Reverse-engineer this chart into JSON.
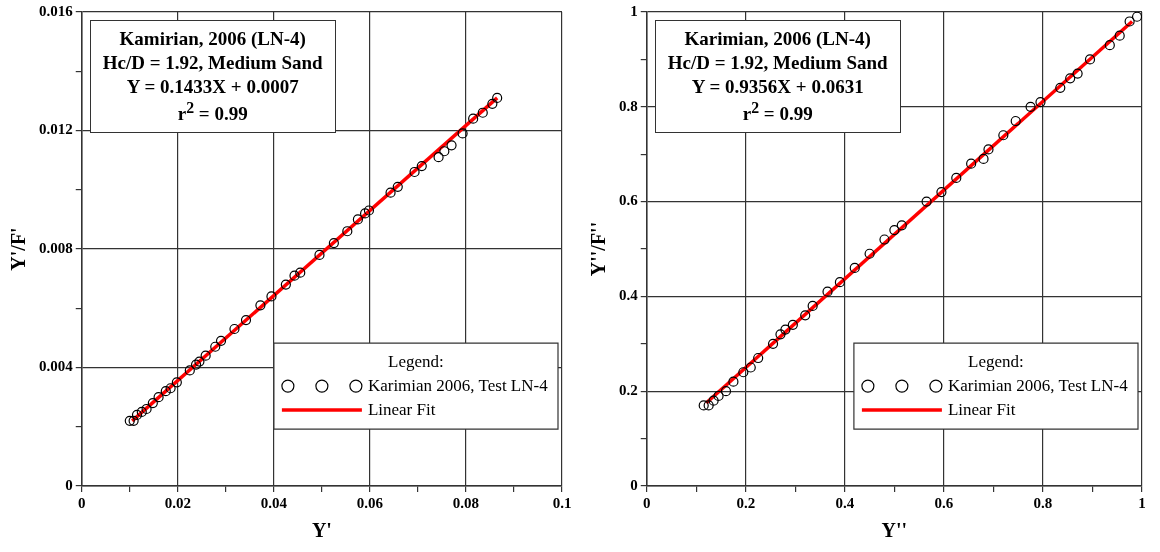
{
  "chart_data": [
    {
      "type": "scatter",
      "xlabel": "Y'",
      "ylabel": "Y'/F'",
      "xlim": [
        0,
        0.1
      ],
      "ylim": [
        0,
        0.016
      ],
      "xticks": [
        0,
        {
          "value": 0.01,
          "label": null
        },
        0.02,
        {
          "value": 0.03,
          "label": null
        },
        0.04,
        {
          "value": 0.05,
          "label": null
        },
        0.06,
        {
          "value": 0.07,
          "label": null
        },
        0.08,
        {
          "value": 0.09,
          "label": null
        },
        0.1
      ],
      "yticks": [
        0,
        {
          "value": 0.002,
          "label": null
        },
        0.004,
        {
          "value": 0.006,
          "label": null
        },
        0.008,
        {
          "value": 0.01,
          "label": null
        },
        0.012,
        {
          "value": 0.014,
          "label": null
        },
        0.016
      ],
      "grid": true,
      "legend": "bottom right",
      "legend_title": "Legend:",
      "annotations": [
        "Kamirian, 2006 (LN-4)",
        "Hc/D = 1.92, Medium Sand",
        "Y = 0.1433X + 0.0007",
        "r$^{2}$ = 0.99"
      ],
      "series": [
        {
          "name": "Karimian 2006, Test LN-4",
          "color": "#000000",
          "marker": "circle",
          "x": [
            0.01,
            0.0108,
            0.0115,
            0.0125,
            0.0135,
            0.0148,
            0.016,
            0.0175,
            0.0185,
            0.0198,
            0.0225,
            0.0238,
            0.0245,
            0.0258,
            0.0278,
            0.029,
            0.0318,
            0.0342,
            0.0372,
            0.0395,
            0.0425,
            0.0443,
            0.0455,
            0.0495,
            0.0525,
            0.0553,
            0.0575,
            0.059,
            0.0598,
            0.0643,
            0.0658,
            0.0693,
            0.0708,
            0.0743,
            0.0755,
            0.077,
            0.0793,
            0.0815,
            0.0835,
            0.0855,
            0.0865
          ],
          "values": [
            0.0022,
            0.0022,
            0.0024,
            0.0025,
            0.0026,
            0.0028,
            0.003,
            0.0032,
            0.0033,
            0.0035,
            0.0039,
            0.0041,
            0.0042,
            0.0044,
            0.0047,
            0.0049,
            0.0053,
            0.0056,
            0.0061,
            0.0064,
            0.0068,
            0.0071,
            0.0072,
            0.0078,
            0.0082,
            0.0086,
            0.009,
            0.0092,
            0.0093,
            0.0099,
            0.0101,
            0.0106,
            0.0108,
            0.0111,
            0.0113,
            0.0115,
            0.0119,
            0.0124,
            0.0126,
            0.0129,
            0.0131
          ]
        },
        {
          "name": "Linear Fit",
          "type": "line",
          "color": "#ff0000",
          "marker": "none",
          "x": [
            0.0105,
            0.0865
          ],
          "values": [
            0.0022,
            0.0131
          ]
        }
      ]
    },
    {
      "type": "scatter",
      "xlabel": "Y''",
      "ylabel": "Y''/F''",
      "xlim": [
        0,
        1
      ],
      "ylim": [
        0,
        1
      ],
      "xticks": [
        0,
        {
          "value": 0.1,
          "label": null
        },
        0.2,
        {
          "value": 0.3,
          "label": null
        },
        0.4,
        {
          "value": 0.5,
          "label": null
        },
        0.6,
        {
          "value": 0.7,
          "label": null
        },
        0.8,
        {
          "value": 0.9,
          "label": null
        },
        1
      ],
      "yticks": [
        0,
        {
          "value": 0.1,
          "label": null
        },
        0.2,
        {
          "value": 0.3,
          "label": null
        },
        0.4,
        {
          "value": 0.5,
          "label": null
        },
        0.6,
        {
          "value": 0.7,
          "label": null
        },
        0.8,
        {
          "value": 0.9,
          "label": null
        },
        1
      ],
      "grid": true,
      "legend": "bottom right",
      "legend_title": "Legend:",
      "annotations": [
        "Karimian, 2006 (LN-4)",
        "Hc/D = 1.92, Medium Sand",
        "Y = 0.9356X + 0.0631",
        "r$^{2}$ = 0.99"
      ],
      "series": [
        {
          "name": "Karimian 2006, Test LN-4",
          "color": "#000000",
          "marker": "circle",
          "x": [
            0.115,
            0.125,
            0.135,
            0.145,
            0.16,
            0.175,
            0.195,
            0.21,
            0.225,
            0.255,
            0.27,
            0.28,
            0.295,
            0.32,
            0.335,
            0.365,
            0.39,
            0.42,
            0.45,
            0.48,
            0.5,
            0.515,
            0.565,
            0.595,
            0.625,
            0.655,
            0.68,
            0.69,
            0.72,
            0.745,
            0.775,
            0.795,
            0.835,
            0.855,
            0.87,
            0.895,
            0.935,
            0.955,
            0.975,
            0.99
          ],
          "values": [
            0.17,
            0.17,
            0.18,
            0.19,
            0.2,
            0.22,
            0.24,
            0.25,
            0.27,
            0.3,
            0.32,
            0.33,
            0.34,
            0.36,
            0.38,
            0.41,
            0.43,
            0.46,
            0.49,
            0.52,
            0.54,
            0.55,
            0.6,
            0.62,
            0.65,
            0.68,
            0.69,
            0.71,
            0.74,
            0.77,
            0.8,
            0.81,
            0.84,
            0.86,
            0.87,
            0.9,
            0.93,
            0.95,
            0.98,
            0.99
          ]
        },
        {
          "name": "Linear Fit",
          "type": "line",
          "color": "#ff0000",
          "marker": "none",
          "x": [
            0.12,
            0.98
          ],
          "values": [
            0.175,
            0.98
          ]
        }
      ]
    }
  ]
}
